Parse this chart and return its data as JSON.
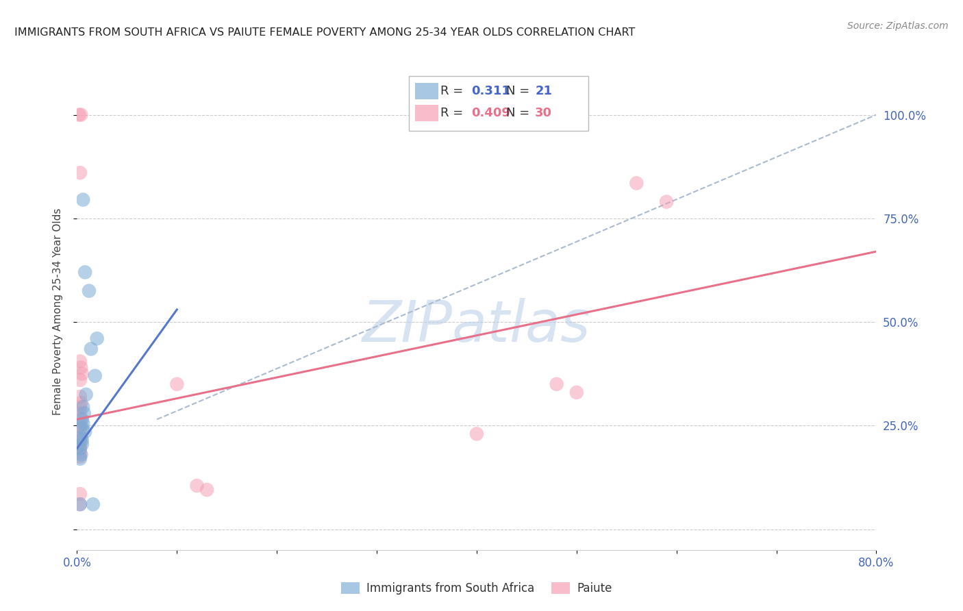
{
  "title": "IMMIGRANTS FROM SOUTH AFRICA VS PAIUTE FEMALE POVERTY AMONG 25-34 YEAR OLDS CORRELATION CHART",
  "source": "Source: ZipAtlas.com",
  "ylabel": "Female Poverty Among 25-34 Year Olds",
  "xlim": [
    0.0,
    0.8
  ],
  "ylim": [
    -0.05,
    1.1
  ],
  "xticks": [
    0.0,
    0.1,
    0.2,
    0.3,
    0.4,
    0.5,
    0.6,
    0.7,
    0.8
  ],
  "xtick_labels": [
    "0.0%",
    "",
    "",
    "",
    "",
    "",
    "",
    "",
    "80.0%"
  ],
  "yticks": [
    0.0,
    0.25,
    0.5,
    0.75,
    1.0
  ],
  "ytick_labels": [
    "",
    "25.0%",
    "50.0%",
    "75.0%",
    "100.0%"
  ],
  "legend_entries": [
    {
      "label": "Immigrants from South Africa",
      "R": "0.311",
      "N": "21",
      "color": "#7aaad4"
    },
    {
      "label": "Paiute",
      "R": "0.409",
      "N": "30",
      "color": "#f599b0"
    }
  ],
  "blue_scatter": [
    [
      0.006,
      0.795
    ],
    [
      0.008,
      0.62
    ],
    [
      0.012,
      0.575
    ],
    [
      0.02,
      0.46
    ],
    [
      0.014,
      0.435
    ],
    [
      0.018,
      0.37
    ],
    [
      0.009,
      0.325
    ],
    [
      0.006,
      0.295
    ],
    [
      0.007,
      0.28
    ],
    [
      0.005,
      0.265
    ],
    [
      0.006,
      0.255
    ],
    [
      0.005,
      0.245
    ],
    [
      0.008,
      0.235
    ],
    [
      0.004,
      0.22
    ],
    [
      0.005,
      0.215
    ],
    [
      0.005,
      0.205
    ],
    [
      0.003,
      0.195
    ],
    [
      0.004,
      0.18
    ],
    [
      0.003,
      0.17
    ],
    [
      0.003,
      0.06
    ],
    [
      0.016,
      0.06
    ]
  ],
  "pink_scatter": [
    [
      0.002,
      1.0
    ],
    [
      0.004,
      1.0
    ],
    [
      0.003,
      0.86
    ],
    [
      0.56,
      0.835
    ],
    [
      0.59,
      0.79
    ],
    [
      0.003,
      0.405
    ],
    [
      0.004,
      0.39
    ],
    [
      0.005,
      0.375
    ],
    [
      0.003,
      0.36
    ],
    [
      0.48,
      0.35
    ],
    [
      0.5,
      0.33
    ],
    [
      0.003,
      0.32
    ],
    [
      0.004,
      0.305
    ],
    [
      0.1,
      0.35
    ],
    [
      0.003,
      0.295
    ],
    [
      0.003,
      0.28
    ],
    [
      0.004,
      0.265
    ],
    [
      0.003,
      0.25
    ],
    [
      0.003,
      0.238
    ],
    [
      0.003,
      0.225
    ],
    [
      0.003,
      0.215
    ],
    [
      0.003,
      0.205
    ],
    [
      0.003,
      0.195
    ],
    [
      0.003,
      0.185
    ],
    [
      0.003,
      0.175
    ],
    [
      0.12,
      0.105
    ],
    [
      0.13,
      0.095
    ],
    [
      0.4,
      0.23
    ],
    [
      0.003,
      0.085
    ],
    [
      0.003,
      0.06
    ]
  ],
  "blue_line_x": [
    0.0,
    0.1
  ],
  "blue_line_y": [
    0.195,
    0.53
  ],
  "pink_line_x": [
    0.0,
    0.8
  ],
  "pink_line_y": [
    0.265,
    0.67
  ],
  "diag_line_x": [
    0.08,
    0.8
  ],
  "diag_line_y": [
    0.265,
    1.0
  ],
  "watermark": "ZIPatlas",
  "background_color": "#ffffff",
  "grid_color": "#cccccc",
  "title_color": "#222222",
  "axis_label_color": "#444444",
  "tick_label_color": "#4466bb",
  "source_color": "#888888"
}
